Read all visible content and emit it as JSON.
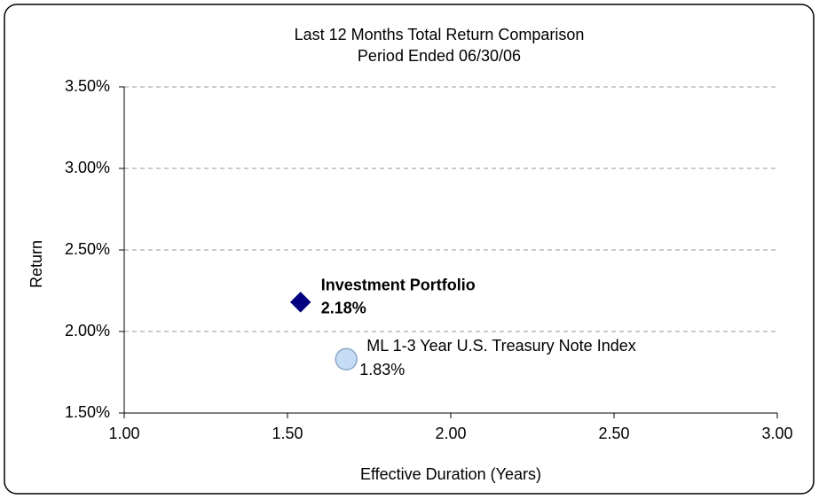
{
  "chart_data": {
    "type": "scatter",
    "title": "Last 12 Months Total Return Comparison",
    "subtitle": "Period Ended 06/30/06",
    "x_label": "Effective Duration (Years)",
    "y_label": "Return",
    "xlim": [
      1.0,
      3.0
    ],
    "xticks": [
      {
        "value": 1.0,
        "label": "1.00"
      },
      {
        "value": 1.5,
        "label": "1.50"
      },
      {
        "value": 2.0,
        "label": "2.00"
      },
      {
        "value": 2.5,
        "label": "2.50"
      },
      {
        "value": 3.0,
        "label": "3.00"
      }
    ],
    "ylim": [
      1.5,
      3.5
    ],
    "yticks": [
      {
        "value": 1.5,
        "label": "1.50%"
      },
      {
        "value": 2.0,
        "label": "2.00%"
      },
      {
        "value": 2.5,
        "label": "2.50%"
      },
      {
        "value": 3.0,
        "label": "3.00%"
      },
      {
        "value": 3.5,
        "label": "3.50%"
      }
    ],
    "grid": true,
    "series": [
      {
        "name": "Investment Portfolio",
        "color": "#000080",
        "marker": "diamond",
        "x": [
          1.54
        ],
        "values": [
          2.18
        ],
        "value_labels": [
          "2.18%"
        ]
      },
      {
        "name": "ML 1-3 Year U.S. Treasury Note Index",
        "color": "#c6dcf4",
        "marker": "circle",
        "x": [
          1.68
        ],
        "values": [
          1.83
        ],
        "value_labels": [
          "1.83%"
        ]
      }
    ]
  }
}
